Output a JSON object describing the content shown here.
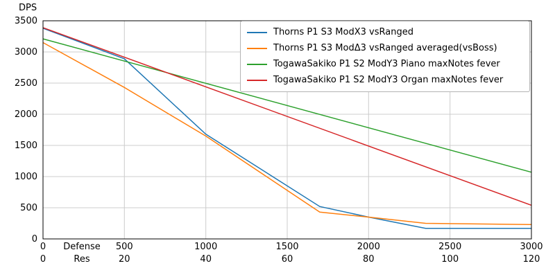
{
  "chart_data": {
    "type": "line",
    "title": "",
    "ylabel": "DPS",
    "xlabel": "",
    "xlim": [
      0,
      3000
    ],
    "ylim": [
      0,
      3500
    ],
    "y_ticks": [
      0,
      500,
      1000,
      1500,
      2000,
      2500,
      3000,
      3500
    ],
    "x_axis_rows": [
      {
        "label": "Defense",
        "ticks": [
          0,
          500,
          1000,
          1500,
          2000,
          2500,
          3000
        ]
      },
      {
        "label": "Res",
        "ticks": [
          0,
          20,
          40,
          60,
          80,
          100,
          120
        ]
      }
    ],
    "grid": true,
    "grid_color": "#cccccc",
    "legend": {
      "position": "upper right",
      "border_color": "#b3b3b3"
    },
    "series": [
      {
        "name": "Thorns P1 S3 ModX3 vsRanged",
        "color": "#1f77b4",
        "x": [
          0,
          500,
          1000,
          1700,
          2000,
          2350,
          3000
        ],
        "y": [
          3380,
          2890,
          1680,
          520,
          350,
          170,
          170
        ]
      },
      {
        "name": "Thorns P1 S3 ModΔ3 vsRanged averaged(vsBoss)",
        "color": "#ff7f0e",
        "x": [
          0,
          500,
          1000,
          1700,
          2000,
          2350,
          3000
        ],
        "y": [
          3150,
          2430,
          1650,
          430,
          350,
          250,
          230
        ]
      },
      {
        "name": "TogawaSakiko P1 S2 ModY3 Piano maxNotes fever",
        "color": "#2ca02c",
        "x": [
          0,
          3000
        ],
        "y": [
          3210,
          1070
        ]
      },
      {
        "name": "TogawaSakiko P1 S2 ModY3 Organ maxNotes fever",
        "color": "#d62728",
        "x": [
          0,
          3000
        ],
        "y": [
          3390,
          540
        ]
      }
    ]
  }
}
